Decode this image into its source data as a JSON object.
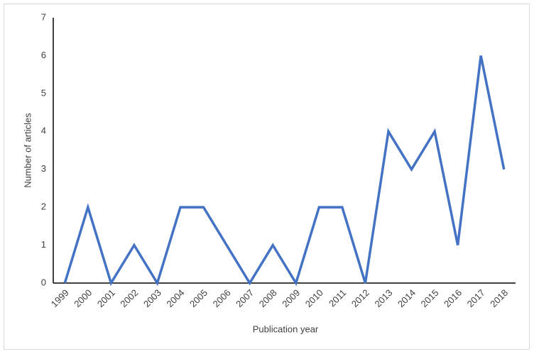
{
  "chart_data": {
    "type": "line",
    "x_label": "Publication year",
    "y_label": "Number of articles",
    "categories": [
      "1999",
      "2000",
      "2001",
      "2002",
      "2003",
      "2004",
      "2005",
      "2006",
      "2007",
      "2008",
      "2009",
      "2010",
      "2011",
      "2012",
      "2013",
      "2014",
      "2015",
      "2016",
      "2017",
      "2018"
    ],
    "series": [
      {
        "name": "Number of articles",
        "color": "#4472c4",
        "values": [
          0,
          2,
          0,
          1,
          0,
          2,
          2,
          1,
          0,
          1,
          0,
          2,
          2,
          0,
          4,
          3,
          4,
          1,
          6,
          3
        ]
      }
    ],
    "ylim": [
      0,
      7
    ],
    "yticks": [
      0,
      1,
      2,
      3,
      4,
      5,
      6,
      7
    ],
    "grid": false,
    "legend": false
  }
}
